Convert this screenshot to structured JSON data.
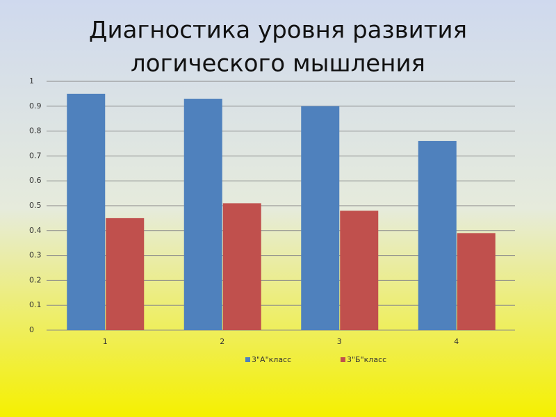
{
  "chart_data": {
    "type": "bar",
    "title": [
      "Диагностика уровня развития",
      "логического мышления"
    ],
    "categories": [
      "1",
      "2",
      "3",
      "4"
    ],
    "series": [
      {
        "name": "3\"А\"класс",
        "color": "#4f81bd",
        "values": [
          0.95,
          0.93,
          0.9,
          0.76
        ]
      },
      {
        "name": "3\"Б\"класс",
        "color": "#c0504d",
        "values": [
          0.45,
          0.51,
          0.48,
          0.39
        ]
      }
    ],
    "ylim": [
      0,
      1
    ],
    "yticks": [
      0,
      0.1,
      0.2,
      0.3,
      0.4,
      0.5,
      0.6,
      0.7,
      0.8,
      0.9,
      1
    ],
    "grid": true,
    "legend": "bottom"
  }
}
